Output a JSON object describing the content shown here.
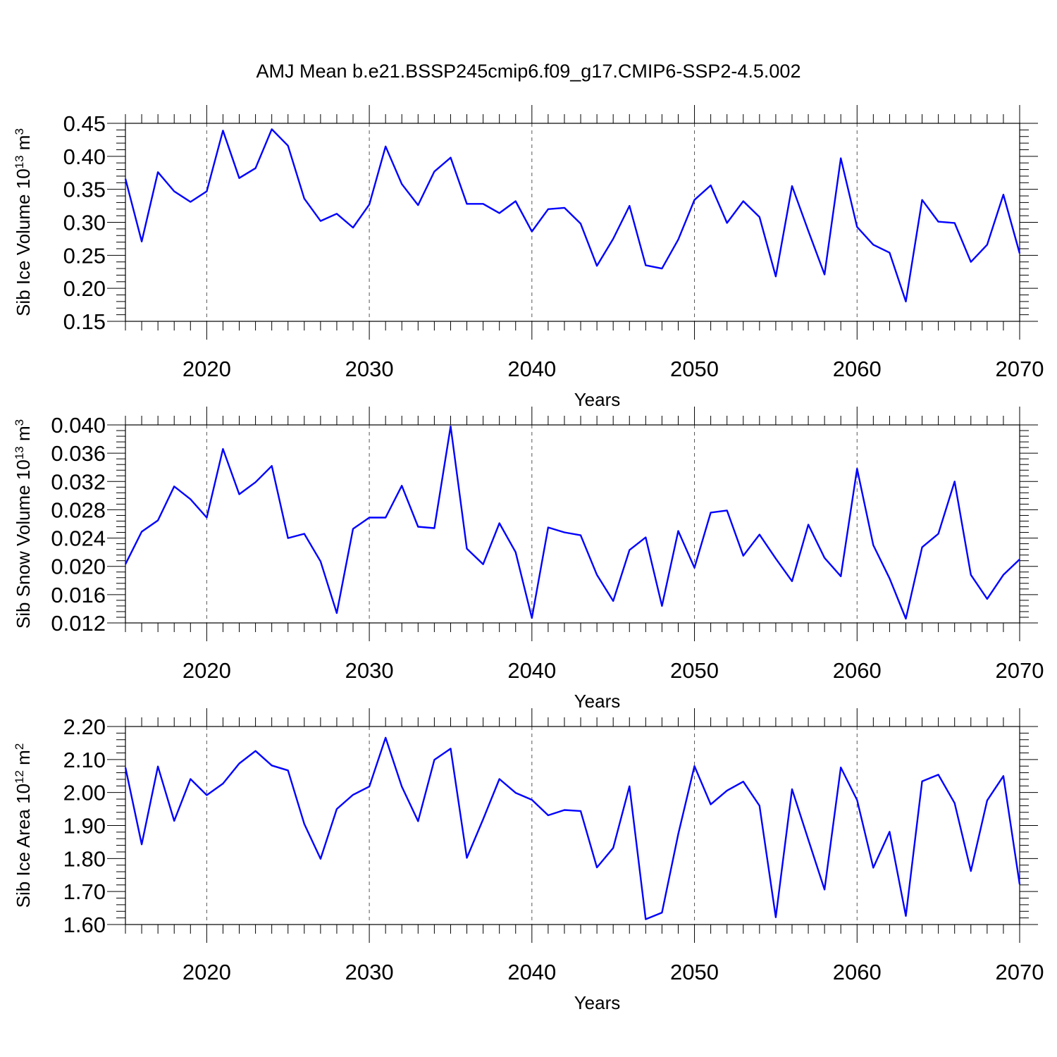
{
  "title": "AMJ Mean b.e21.BSSP245cmip6.f09_g17.CMIP6-SSP2-4.5.002",
  "colors": {
    "line": "#0000ff",
    "axis": "#000000"
  },
  "chart_data": [
    {
      "type": "line",
      "ylabel": {
        "main": "Sib Ice Volume 10",
        "exp": "13",
        "unit": " m",
        "unit_exp": "3"
      },
      "xlabel": "Years",
      "xlim": [
        2015,
        2070
      ],
      "ylim": [
        0.15,
        0.45
      ],
      "yticks": [
        "0.15",
        "0.20",
        "0.25",
        "0.30",
        "0.35",
        "0.40",
        "0.45"
      ],
      "xticks": [
        "2020",
        "2030",
        "2040",
        "2050",
        "2060",
        "2070"
      ],
      "grid": "vertical dashed at major x ticks",
      "x": [
        2015,
        2016,
        2017,
        2018,
        2019,
        2020,
        2021,
        2022,
        2023,
        2024,
        2025,
        2026,
        2027,
        2028,
        2029,
        2030,
        2031,
        2032,
        2033,
        2034,
        2035,
        2036,
        2037,
        2038,
        2039,
        2040,
        2041,
        2042,
        2043,
        2044,
        2045,
        2046,
        2047,
        2048,
        2049,
        2050,
        2051,
        2052,
        2053,
        2054,
        2055,
        2056,
        2057,
        2058,
        2059,
        2060,
        2061,
        2062,
        2063,
        2064,
        2065,
        2066,
        2067,
        2068,
        2069,
        2070
      ],
      "values": [
        0.366,
        0.271,
        0.376,
        0.347,
        0.331,
        0.347,
        0.439,
        0.367,
        0.382,
        0.441,
        0.416,
        0.336,
        0.302,
        0.313,
        0.292,
        0.327,
        0.415,
        0.358,
        0.326,
        0.377,
        0.398,
        0.328,
        0.328,
        0.314,
        0.332,
        0.286,
        0.32,
        0.322,
        0.298,
        0.234,
        0.275,
        0.325,
        0.235,
        0.23,
        0.274,
        0.334,
        0.356,
        0.299,
        0.332,
        0.308,
        0.218,
        0.355,
        0.287,
        0.221,
        0.397,
        0.293,
        0.266,
        0.254,
        0.18,
        0.334,
        0.301,
        0.299,
        0.24,
        0.266,
        0.342,
        0.253
      ]
    },
    {
      "type": "line",
      "ylabel": {
        "main": "Sib Snow Volume 10",
        "exp": "13",
        "unit": " m",
        "unit_exp": "3"
      },
      "xlabel": "Years",
      "xlim": [
        2015,
        2070
      ],
      "ylim": [
        0.012,
        0.04
      ],
      "yticks": [
        "0.012",
        "0.016",
        "0.020",
        "0.024",
        "0.028",
        "0.032",
        "0.036",
        "0.040"
      ],
      "xticks": [
        "2020",
        "2030",
        "2040",
        "2050",
        "2060",
        "2070"
      ],
      "grid": "vertical dashed at major x ticks",
      "x": [
        2015,
        2016,
        2017,
        2018,
        2019,
        2020,
        2021,
        2022,
        2023,
        2024,
        2025,
        2026,
        2027,
        2028,
        2029,
        2030,
        2031,
        2032,
        2033,
        2034,
        2035,
        2036,
        2037,
        2038,
        2039,
        2040,
        2041,
        2042,
        2043,
        2044,
        2045,
        2046,
        2047,
        2048,
        2049,
        2050,
        2051,
        2052,
        2053,
        2054,
        2055,
        2056,
        2057,
        2058,
        2059,
        2060,
        2061,
        2062,
        2063,
        2064,
        2065,
        2066,
        2067,
        2068,
        2069,
        2070
      ],
      "values": [
        0.0203,
        0.0249,
        0.0265,
        0.0313,
        0.0295,
        0.0269,
        0.0366,
        0.0302,
        0.0319,
        0.0342,
        0.024,
        0.0246,
        0.0207,
        0.0134,
        0.0253,
        0.0269,
        0.0269,
        0.0314,
        0.0256,
        0.0254,
        0.0398,
        0.0225,
        0.0203,
        0.0261,
        0.022,
        0.0127,
        0.0255,
        0.0248,
        0.0244,
        0.0188,
        0.0151,
        0.0223,
        0.0241,
        0.0144,
        0.025,
        0.0198,
        0.0276,
        0.0279,
        0.0215,
        0.0245,
        0.0211,
        0.0179,
        0.0259,
        0.0212,
        0.0186,
        0.0338,
        0.023,
        0.0183,
        0.0126,
        0.0227,
        0.0246,
        0.032,
        0.0188,
        0.0154,
        0.0188,
        0.021
      ]
    },
    {
      "type": "line",
      "ylabel": {
        "main": "Sib Ice Area 10",
        "exp": "12",
        "unit": " m",
        "unit_exp": "2"
      },
      "xlabel": "Years",
      "xlim": [
        2015,
        2070
      ],
      "ylim": [
        1.6,
        2.2
      ],
      "yticks": [
        "1.60",
        "1.70",
        "1.80",
        "1.90",
        "2.00",
        "2.10",
        "2.20"
      ],
      "xticks": [
        "2020",
        "2030",
        "2040",
        "2050",
        "2060",
        "2070"
      ],
      "grid": "vertical dashed at major x ticks",
      "x": [
        2015,
        2016,
        2017,
        2018,
        2019,
        2020,
        2021,
        2022,
        2023,
        2024,
        2025,
        2026,
        2027,
        2028,
        2029,
        2030,
        2031,
        2032,
        2033,
        2034,
        2035,
        2036,
        2037,
        2038,
        2039,
        2040,
        2041,
        2042,
        2043,
        2044,
        2045,
        2046,
        2047,
        2048,
        2049,
        2050,
        2051,
        2052,
        2053,
        2054,
        2055,
        2056,
        2057,
        2058,
        2059,
        2060,
        2061,
        2062,
        2063,
        2064,
        2065,
        2066,
        2067,
        2068,
        2069,
        2070
      ],
      "values": [
        2.076,
        1.843,
        2.079,
        1.914,
        2.041,
        1.992,
        2.027,
        2.088,
        2.126,
        2.082,
        2.067,
        1.905,
        1.799,
        1.95,
        1.993,
        2.018,
        2.166,
        2.018,
        1.913,
        2.099,
        2.133,
        1.802,
        1.919,
        2.041,
        1.999,
        1.978,
        1.931,
        1.947,
        1.944,
        1.773,
        1.832,
        2.019,
        1.616,
        1.636,
        1.874,
        2.08,
        1.964,
        2.006,
        2.033,
        1.96,
        1.622,
        2.01,
        1.857,
        1.706,
        2.076,
        1.977,
        1.772,
        1.881,
        1.626,
        2.034,
        2.054,
        1.968,
        1.762,
        1.976,
        2.05,
        1.722
      ]
    }
  ]
}
